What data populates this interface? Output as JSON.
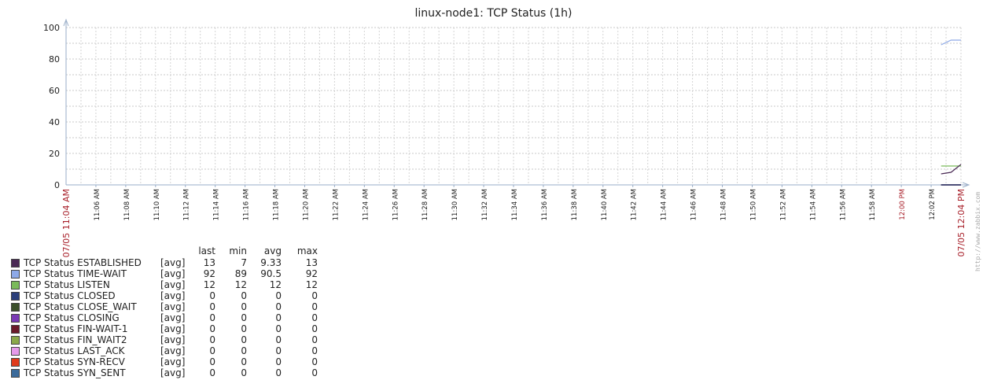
{
  "chart_data": {
    "type": "line",
    "title": "linux-node1: TCP Status (1h)",
    "ylim": [
      0,
      100
    ],
    "yticks": [
      "0",
      "20",
      "40",
      "60",
      "80",
      "100"
    ],
    "x_start_label": "07/05 11:04 AM",
    "x_end_label": "07/05 12:04 PM",
    "x_ticks": [
      "11:06 AM",
      "11:08 AM",
      "11:10 AM",
      "11:12 AM",
      "11:14 AM",
      "11:16 AM",
      "11:18 AM",
      "11:20 AM",
      "11:22 AM",
      "11:24 AM",
      "11:26 AM",
      "11:28 AM",
      "11:30 AM",
      "11:32 AM",
      "11:34 AM",
      "11:36 AM",
      "11:38 AM",
      "11:40 AM",
      "11:42 AM",
      "11:44 AM",
      "11:46 AM",
      "11:48 AM",
      "11:50 AM",
      "11:52 AM",
      "11:54 AM",
      "11:56 AM",
      "11:58 AM",
      "12:00 PM",
      "12:02 PM"
    ],
    "x_ticks_red": [
      "12:00 PM"
    ],
    "grid": true,
    "legend_position": "bottom-left",
    "legend_columns": [
      "last",
      "min",
      "avg",
      "max"
    ],
    "series": [
      {
        "name": "TCP Status ESTABLISHED",
        "fn": "[avg]",
        "color": "#4a2a55",
        "last": "13",
        "min": "7",
        "avg": "9.33",
        "max": "13",
        "points": [
          [
            "12:02:40 PM",
            7
          ],
          [
            "12:03:20 PM",
            8
          ],
          [
            "12:04 PM",
            13
          ]
        ]
      },
      {
        "name": "TCP Status TIME-WAIT",
        "fn": "[avg]",
        "color": "#8da9e8",
        "last": "92",
        "min": "89",
        "avg": "90.5",
        "max": "92",
        "points": [
          [
            "12:02:40 PM",
            89
          ],
          [
            "12:03:20 PM",
            92
          ],
          [
            "12:04 PM",
            92
          ]
        ]
      },
      {
        "name": "TCP Status LISTEN",
        "fn": "[avg]",
        "color": "#7aba5a",
        "last": "12",
        "min": "12",
        "avg": "12",
        "max": "12",
        "points": [
          [
            "12:02:40 PM",
            12
          ],
          [
            "12:04 PM",
            12
          ]
        ]
      },
      {
        "name": "TCP Status CLOSED",
        "fn": "[avg]",
        "color": "#2b3f7a",
        "last": "0",
        "min": "0",
        "avg": "0",
        "max": "0",
        "points": [
          [
            "12:02:40 PM",
            0
          ],
          [
            "12:04 PM",
            0
          ]
        ]
      },
      {
        "name": "TCP Status CLOSE_WAIT",
        "fn": "[avg]",
        "color": "#3a4f2a",
        "last": "0",
        "min": "0",
        "avg": "0",
        "max": "0",
        "points": [
          [
            "12:02:40 PM",
            0
          ],
          [
            "12:04 PM",
            0
          ]
        ]
      },
      {
        "name": "TCP Status CLOSING",
        "fn": "[avg]",
        "color": "#7a3ab5",
        "last": "0",
        "min": "0",
        "avg": "0",
        "max": "0",
        "points": [
          [
            "12:02:40 PM",
            0
          ],
          [
            "12:04 PM",
            0
          ]
        ]
      },
      {
        "name": "TCP Status FIN-WAIT-1",
        "fn": "[avg]",
        "color": "#6a1a2a",
        "last": "0",
        "min": "0",
        "avg": "0",
        "max": "0",
        "points": [
          [
            "12:02:40 PM",
            0
          ],
          [
            "12:04 PM",
            0
          ]
        ]
      },
      {
        "name": "TCP Status FIN_WAIT2",
        "fn": "[avg]",
        "color": "#8aa84a",
        "last": "0",
        "min": "0",
        "avg": "0",
        "max": "0",
        "points": [
          [
            "12:02:40 PM",
            0
          ],
          [
            "12:04 PM",
            0
          ]
        ]
      },
      {
        "name": "TCP Status LAST_ACK",
        "fn": "[avg]",
        "color": "#e59aea",
        "last": "0",
        "min": "0",
        "avg": "0",
        "max": "0",
        "points": [
          [
            "12:02:40 PM",
            0
          ],
          [
            "12:04 PM",
            0
          ]
        ]
      },
      {
        "name": "TCP Status SYN-RECV",
        "fn": "[avg]",
        "color": "#e03a1a",
        "last": "0",
        "min": "0",
        "avg": "0",
        "max": "0",
        "points": [
          [
            "12:02:40 PM",
            0
          ],
          [
            "12:04 PM",
            0
          ]
        ]
      },
      {
        "name": "TCP Status SYN_SENT",
        "fn": "[avg]",
        "color": "#3a6a9a",
        "last": "0",
        "min": "0",
        "avg": "0",
        "max": "0",
        "points": [
          [
            "12:02:40 PM",
            0
          ],
          [
            "12:04 PM",
            0
          ]
        ]
      }
    ]
  },
  "watermark": "http://www.zabbix.com"
}
